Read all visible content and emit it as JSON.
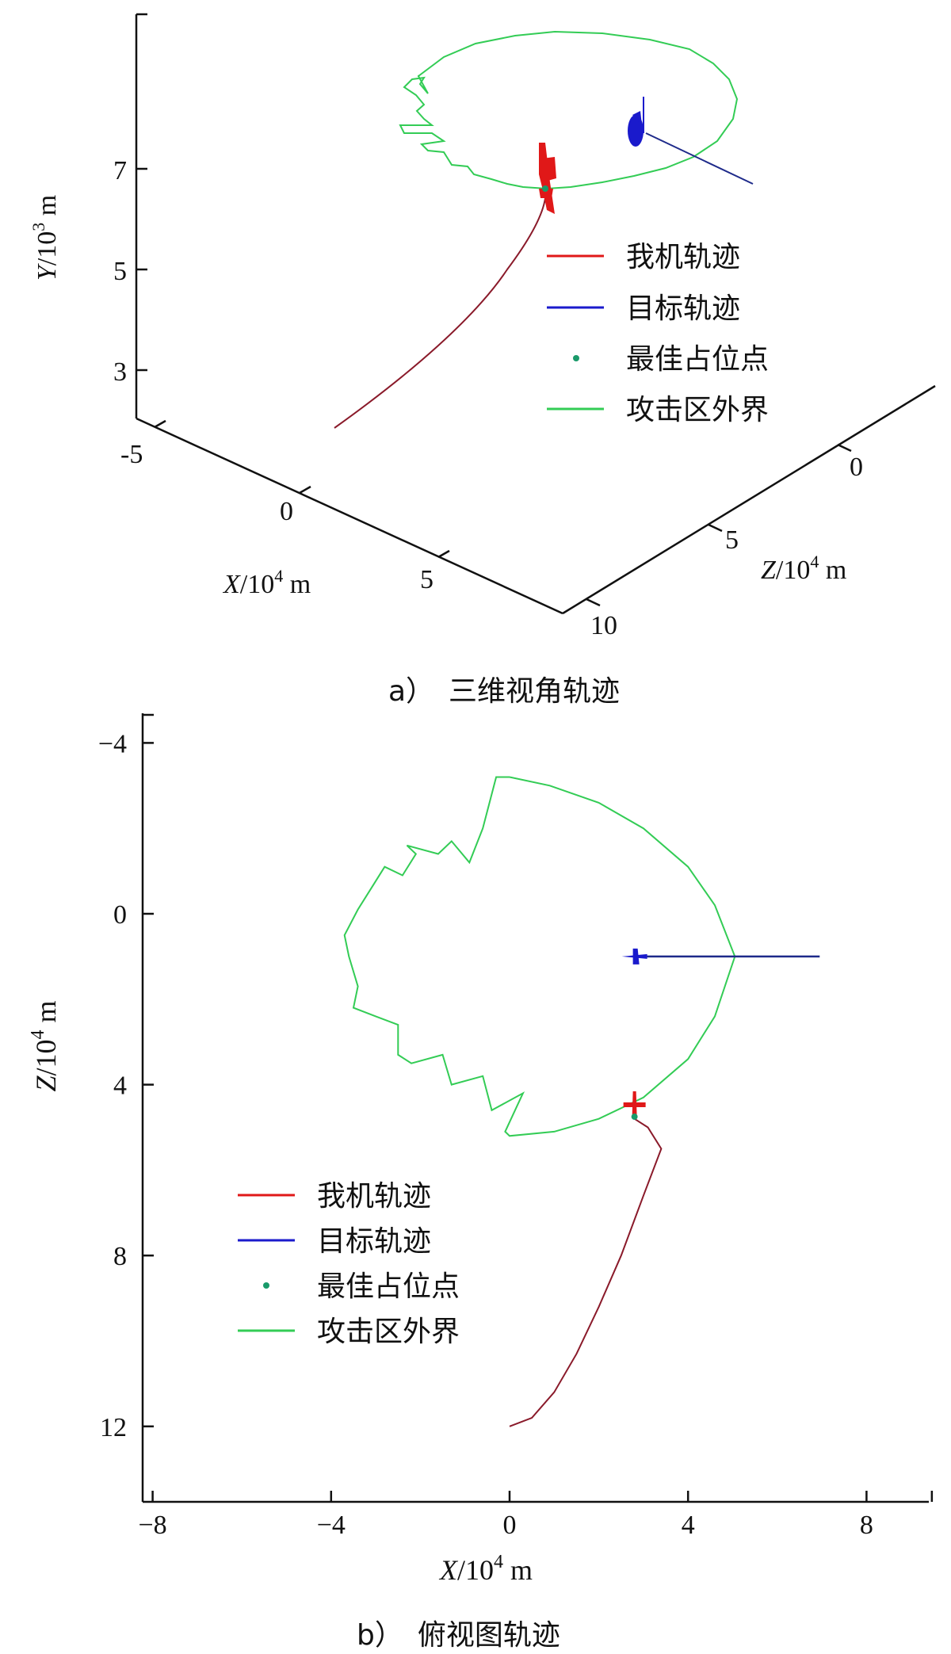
{
  "figure": {
    "caption_a": "a）　三维视角轨迹",
    "caption_b": "b）　俯视图轨迹"
  },
  "legend": [
    "我机轨迹",
    "目标轨迹",
    "最佳占位点",
    "攻击区外界"
  ],
  "colors": {
    "own": "#e01818",
    "own_tail": "#8a1a2a",
    "target": "#1a1acc",
    "target_tail": "#1e2a8a",
    "best_point": "#1a9a6a",
    "boundary": "#33cc55",
    "axis": "#111111"
  },
  "chart_data": [
    {
      "type": "line",
      "view": "3d",
      "caption": "a）　三维视角轨迹",
      "axes": {
        "x": {
          "label": "X/10⁴ m",
          "ticks": [
            -5,
            0,
            5
          ]
        },
        "y": {
          "label": "Y/10³ m",
          "ticks": [
            3,
            5,
            7
          ]
        },
        "z": {
          "label": "Z/10⁴ m",
          "ticks": [
            0,
            5,
            10
          ]
        }
      },
      "legend_placement": "right",
      "series": [
        {
          "name": "我机轨迹",
          "color": "red"
        },
        {
          "name": "目标轨迹",
          "color": "blue"
        },
        {
          "name": "最佳占位点",
          "color": "green",
          "marker": "point"
        },
        {
          "name": "攻击区外界",
          "color": "green"
        }
      ]
    },
    {
      "type": "line",
      "view": "top",
      "caption": "b）　俯视图轨迹",
      "xlabel": "X/10⁴ m",
      "ylabel": "Z/10⁴ m",
      "xlim": [
        -8.5,
        9.5
      ],
      "ylim": [
        -4.8,
        13.8
      ],
      "y_reversed": true,
      "xticks": [
        -8,
        -4,
        0,
        4,
        8
      ],
      "yticks": [
        -4,
        0,
        4,
        8,
        12
      ],
      "legend_placement": "bottom-left",
      "series": [
        {
          "name": "我机轨迹",
          "points": [
            [
              0,
              12
            ],
            [
              0.5,
              11.8
            ],
            [
              1,
              11.2
            ],
            [
              1.5,
              10.3
            ],
            [
              2,
              9.2
            ],
            [
              2.5,
              8
            ],
            [
              3,
              6.6
            ],
            [
              3.4,
              5.5
            ],
            [
              3.1,
              5
            ],
            [
              2.8,
              4.8
            ]
          ]
        },
        {
          "name": "目标轨迹",
          "points": [
            [
              6.95,
              1
            ],
            [
              2.8,
              1
            ]
          ]
        },
        {
          "name": "最佳占位点",
          "points": [
            [
              2.8,
              4.75
            ]
          ]
        },
        {
          "name": "攻击区外界",
          "points": [
            [
              0,
              -3.2
            ],
            [
              0.9,
              -3
            ],
            [
              2,
              -2.6
            ],
            [
              3,
              -2
            ],
            [
              4,
              -1.1
            ],
            [
              4.6,
              -0.2
            ],
            [
              5.05,
              1
            ],
            [
              4.6,
              2.4
            ],
            [
              4,
              3.4
            ],
            [
              3,
              4.3
            ],
            [
              2,
              4.8
            ],
            [
              1,
              5.1
            ],
            [
              0,
              5.2
            ],
            [
              -0.1,
              5.1
            ],
            [
              0.3,
              4.2
            ],
            [
              -0.4,
              4.6
            ],
            [
              -0.6,
              3.8
            ],
            [
              -1.3,
              4
            ],
            [
              -1.5,
              3.3
            ],
            [
              -2.2,
              3.5
            ],
            [
              -2.5,
              3.3
            ],
            [
              -2.5,
              2.6
            ],
            [
              -3,
              2.4
            ],
            [
              -3.5,
              2.2
            ],
            [
              -3.4,
              1.7
            ],
            [
              -3.6,
              1
            ],
            [
              -3.7,
              0.5
            ],
            [
              -3.4,
              -0.1
            ],
            [
              -3.1,
              -0.6
            ],
            [
              -2.8,
              -1.1
            ],
            [
              -2.4,
              -0.9
            ],
            [
              -2.1,
              -1.4
            ],
            [
              -2.3,
              -1.6
            ],
            [
              -1.6,
              -1.4
            ],
            [
              -1.3,
              -1.7
            ],
            [
              -0.9,
              -1.2
            ],
            [
              -0.6,
              -2
            ],
            [
              -0.3,
              -3.2
            ],
            [
              0,
              -3.2
            ]
          ]
        }
      ]
    }
  ]
}
